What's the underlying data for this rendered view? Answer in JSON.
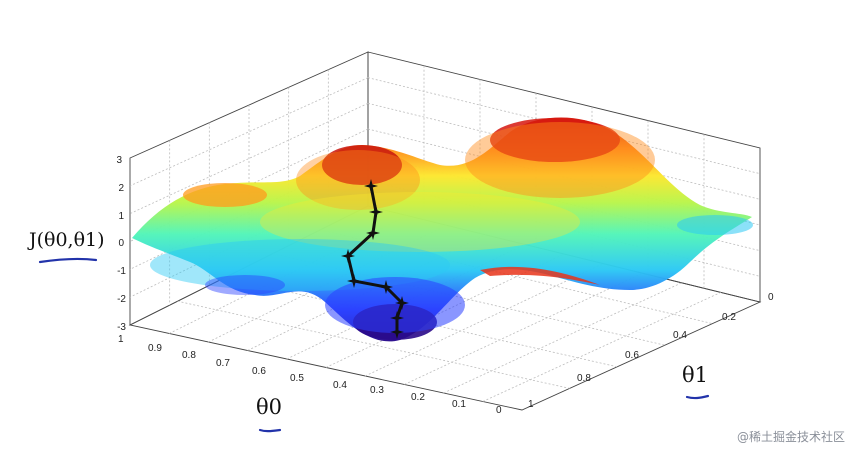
{
  "chart_data": {
    "type": "surface",
    "title": "",
    "xlabel": "θ0",
    "ylabel": "θ1",
    "zlabel": "J(θ0,θ1)",
    "x_axis": {
      "name": "θ0",
      "range": [
        0,
        1
      ],
      "ticks": [
        "1",
        "0.9",
        "0.8",
        "0.7",
        "0.6",
        "0.5",
        "0.4",
        "0.3",
        "0.2",
        "0.1",
        "0"
      ]
    },
    "y_axis": {
      "name": "θ1",
      "range": [
        0,
        1
      ],
      "ticks": [
        "0",
        "0.2",
        "0.4",
        "0.6",
        "0.8",
        "1"
      ]
    },
    "z_axis": {
      "name": "J(θ0,θ1)",
      "range": [
        -3,
        3
      ],
      "ticks": [
        "3",
        "2",
        "1",
        "0",
        "-1",
        "-2",
        "-3"
      ]
    },
    "grid": true,
    "colormap": "jet",
    "surface_features": [
      {
        "kind": "peak",
        "x": 0.45,
        "y": 0.1,
        "z": 2.6
      },
      {
        "kind": "peak",
        "x": 0.35,
        "y": 0.6,
        "z": 3.0
      },
      {
        "kind": "peak",
        "x": 0.85,
        "y": 0.15,
        "z": 1.6
      },
      {
        "kind": "valley",
        "x": 0.3,
        "y": 0.05,
        "z": -3.0
      },
      {
        "kind": "valley",
        "x": 0.05,
        "y": 0.45,
        "z": -1.6
      }
    ],
    "descent_path": {
      "name": "",
      "points": [
        {
          "z": 2.0
        },
        {
          "z": 1.6
        },
        {
          "z": 0.9
        },
        {
          "z": 0.3
        },
        {
          "z": -0.6
        },
        {
          "z": -1.3
        },
        {
          "z": -1.6
        },
        {
          "z": -2.2
        },
        {
          "z": -2.7
        }
      ]
    },
    "colors": {
      "path": "#111111",
      "underline": "#2233aa"
    }
  },
  "watermark": "@稀土掘金技术社区"
}
